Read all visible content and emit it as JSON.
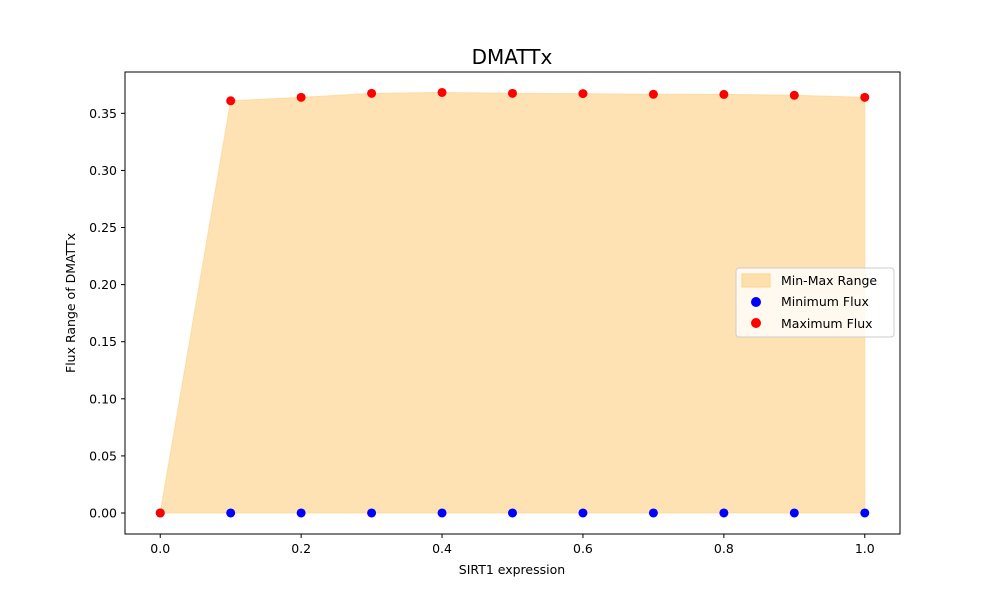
{
  "chart_data": {
    "type": "scatter",
    "title": "DMATTx",
    "xlabel": "SIRT1 expression",
    "ylabel": "Flux Range of DMATTx",
    "xlim": [
      -0.05,
      1.05
    ],
    "ylim": [
      -0.0184,
      0.3862
    ],
    "x_ticks": [
      0.0,
      0.2,
      0.4,
      0.6,
      0.8,
      1.0
    ],
    "x_tick_labels": [
      "0.0",
      "0.2",
      "0.4",
      "0.6",
      "0.8",
      "1.0"
    ],
    "y_ticks": [
      0.0,
      0.05,
      0.1,
      0.15,
      0.2,
      0.25,
      0.3,
      0.35
    ],
    "y_tick_labels": [
      "0.00",
      "0.05",
      "0.10",
      "0.15",
      "0.20",
      "0.25",
      "0.30",
      "0.35"
    ],
    "x": [
      0.0,
      0.1,
      0.2,
      0.3,
      0.4,
      0.5,
      0.6,
      0.7,
      0.8,
      0.9,
      1.0
    ],
    "series": [
      {
        "name": "Minimum Flux",
        "kind": "points",
        "color": "#0000ff",
        "values": [
          0.0,
          0.0,
          0.0,
          0.0,
          0.0,
          0.0,
          0.0,
          0.0,
          0.0,
          0.0,
          0.0
        ]
      },
      {
        "name": "Maximum Flux",
        "kind": "points",
        "color": "#ff0000",
        "values": [
          0.0,
          0.361,
          0.364,
          0.3675,
          0.3683,
          0.3675,
          0.3673,
          0.3667,
          0.3666,
          0.3658,
          0.364
        ]
      }
    ],
    "fill": {
      "name": "Min-Max Range",
      "color": "#fdd28a",
      "opacity": 0.65,
      "lower": "Minimum Flux",
      "upper": "Maximum Flux"
    },
    "legend": {
      "position": "center-right",
      "entries": [
        "Min-Max Range",
        "Minimum Flux",
        "Maximum Flux"
      ]
    },
    "grid": false
  }
}
